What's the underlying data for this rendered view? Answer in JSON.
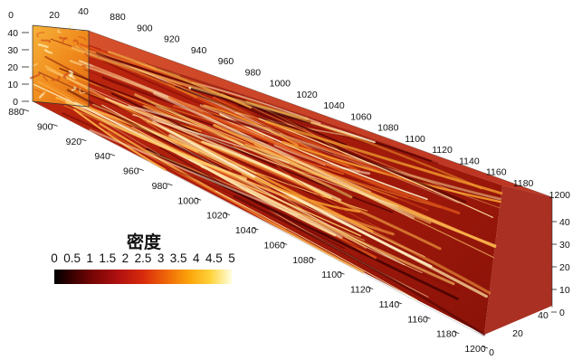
{
  "colorbar": {
    "title": "密度",
    "ticks": [
      "0",
      "0.5",
      "1",
      "1.5",
      "2",
      "2.5",
      "3",
      "3.5",
      "4",
      "4.5",
      "5"
    ],
    "min": 0,
    "max": 5
  },
  "axes": {
    "front_z_labels": [
      "0",
      "10",
      "20",
      "30",
      "40"
    ],
    "front_x_labels": [
      "0",
      "20",
      "40"
    ],
    "axis_a_top_labels": [
      "880",
      "900",
      "920",
      "940",
      "960",
      "980",
      "1000",
      "1020",
      "1040",
      "1060",
      "1080",
      "1100",
      "1120",
      "1140",
      "1160",
      "1180",
      "1200"
    ],
    "axis_a_bottom_labels": [
      "880",
      "900",
      "920",
      "940",
      "960",
      "980",
      "1000",
      "1020",
      "1040",
      "1060",
      "1080",
      "1100",
      "1120",
      "1140",
      "1160",
      "1180",
      "1200"
    ],
    "back_z_labels": [
      "0",
      "10",
      "20",
      "30",
      "40"
    ],
    "back_x_labels": [
      "0",
      "20",
      "40"
    ]
  },
  "colors": {
    "background": "#ffffff",
    "volume_base": "#b3200e",
    "volume_dark": "#5a0505",
    "volume_bright": "#ffe6a0"
  }
}
